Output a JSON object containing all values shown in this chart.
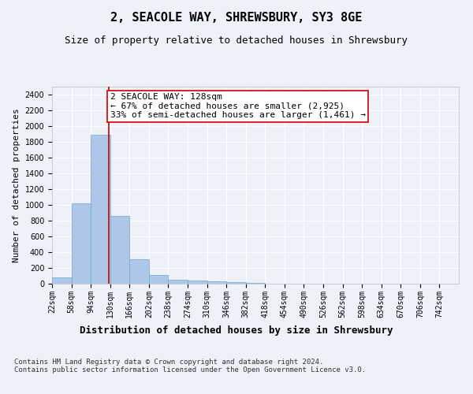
{
  "title": "2, SEACOLE WAY, SHREWSBURY, SY3 8GE",
  "subtitle": "Size of property relative to detached houses in Shrewsbury",
  "xlabel": "Distribution of detached houses by size in Shrewsbury",
  "ylabel": "Number of detached properties",
  "bin_labels": [
    "22sqm",
    "58sqm",
    "94sqm",
    "130sqm",
    "166sqm",
    "202sqm",
    "238sqm",
    "274sqm",
    "310sqm",
    "346sqm",
    "382sqm",
    "418sqm",
    "454sqm",
    "490sqm",
    "526sqm",
    "562sqm",
    "598sqm",
    "634sqm",
    "670sqm",
    "706sqm",
    "742sqm"
  ],
  "bin_edges": [
    22,
    58,
    94,
    130,
    166,
    202,
    238,
    274,
    310,
    346,
    382,
    418,
    454,
    490,
    526,
    562,
    598,
    634,
    670,
    706,
    742
  ],
  "bar_heights": [
    80,
    1020,
    1890,
    860,
    315,
    115,
    50,
    40,
    30,
    20,
    10,
    5,
    2,
    1,
    1,
    0,
    0,
    0,
    0,
    0
  ],
  "bar_color": "#aec6e8",
  "bar_edge_color": "#6aaad4",
  "property_size": 128,
  "vline_color": "#cc0000",
  "annotation_text": "2 SEACOLE WAY: 128sqm\n← 67% of detached houses are smaller (2,925)\n33% of semi-detached houses are larger (1,461) →",
  "annotation_box_color": "#ffffff",
  "annotation_box_edge": "#cc0000",
  "ylim": [
    0,
    2500
  ],
  "yticks": [
    0,
    200,
    400,
    600,
    800,
    1000,
    1200,
    1400,
    1600,
    1800,
    2000,
    2200,
    2400
  ],
  "footer_text": "Contains HM Land Registry data © Crown copyright and database right 2024.\nContains public sector information licensed under the Open Government Licence v3.0.",
  "bg_color": "#eef2f8",
  "plot_bg_color": "#eef2f8",
  "grid_color": "#ffffff",
  "title_fontsize": 11,
  "subtitle_fontsize": 9,
  "xlabel_fontsize": 9,
  "ylabel_fontsize": 8,
  "tick_fontsize": 7,
  "annotation_fontsize": 8,
  "footer_fontsize": 6.5
}
